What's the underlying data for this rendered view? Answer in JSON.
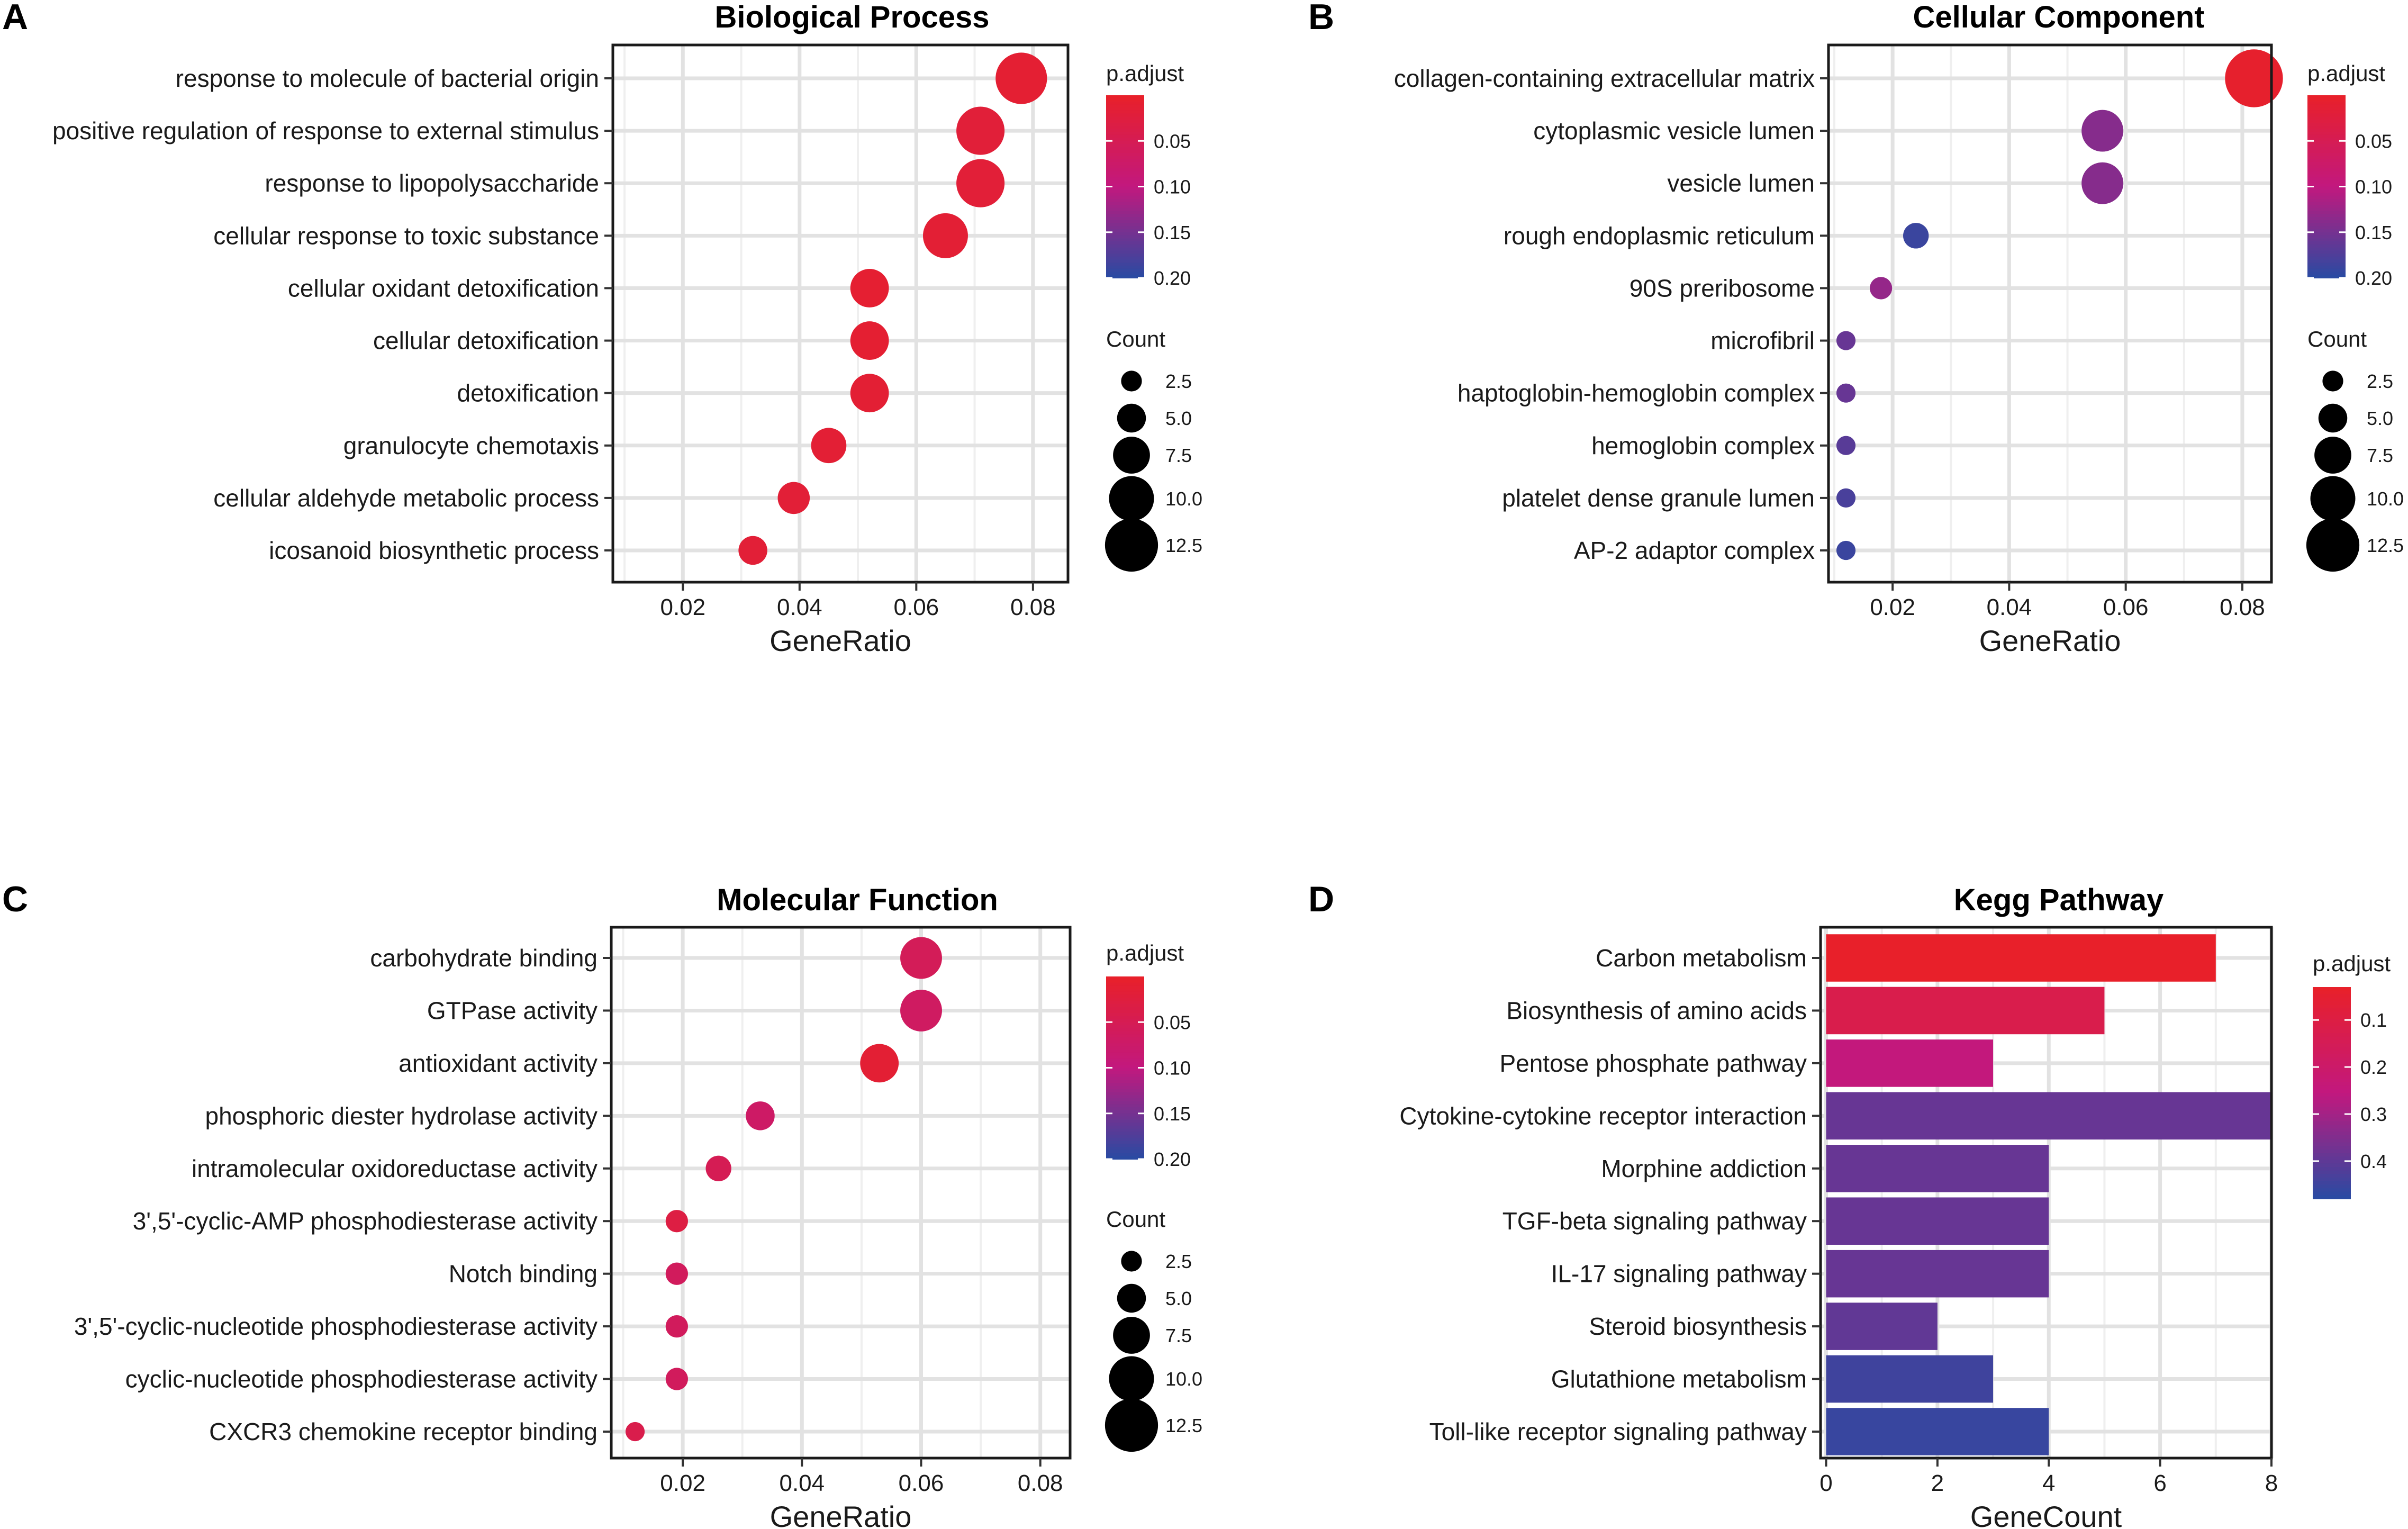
{
  "colors": {
    "high": "#e8202a",
    "mid": "#c2187e",
    "low": "#2b4aa2"
  },
  "chart_data": [
    {
      "panel": "A",
      "type": "scatter",
      "title": "Biological Process",
      "xlabel": "GeneRatio",
      "xlim": [
        0.008,
        0.086
      ],
      "xticks": [
        0.02,
        0.04,
        0.06,
        0.08
      ],
      "xtick_labels": [
        "0.02",
        "0.04",
        "0.06",
        "0.08"
      ],
      "categories": [
        "response to molecule of bacterial origin",
        "positive regulation of response to external stimulus",
        "response to lipopolysaccharide",
        "cellular response to toxic substance",
        "cellular oxidant detoxification",
        "cellular detoxification",
        "detoxification",
        "granulocyte chemotaxis",
        "cellular aldehyde metabolic process",
        "icosanoid biosynthetic process"
      ],
      "gene_ratio": [
        0.078,
        0.071,
        0.071,
        0.065,
        0.052,
        0.052,
        0.052,
        0.045,
        0.039,
        0.032
      ],
      "count": [
        12,
        11,
        11,
        10,
        8,
        8,
        8,
        7,
        6,
        5
      ],
      "p_adjust": [
        0.011,
        0.018,
        0.017,
        0.013,
        0.009,
        0.01,
        0.012,
        0.013,
        0.015,
        0.016
      ],
      "color_legend": {
        "title": "p.adjust",
        "ticks": [
          "0.05",
          "0.10",
          "0.15",
          "0.20"
        ],
        "range": [
          0.0,
          0.2
        ]
      },
      "size_legend": {
        "title": "Count",
        "ticks": [
          "2.5",
          "5.0",
          "7.5",
          "10.0",
          "12.5"
        ]
      }
    },
    {
      "panel": "B",
      "type": "scatter",
      "title": "Cellular Component",
      "xlabel": "GeneRatio",
      "xlim": [
        0.009,
        0.085
      ],
      "xticks": [
        0.02,
        0.04,
        0.06,
        0.08
      ],
      "xtick_labels": [
        "0.02",
        "0.04",
        "0.06",
        "0.08"
      ],
      "categories": [
        "collagen-containing extracellular matrix",
        "cytoplasmic vesicle lumen",
        "vesicle lumen",
        "rough endoplasmic reticulum",
        "90S preribosome",
        "microfibril",
        "haptoglobin-hemoglobin complex",
        "hemoglobin complex",
        "platelet dense granule lumen",
        "AP-2 adaptor complex"
      ],
      "gene_ratio": [
        0.082,
        0.056,
        0.056,
        0.024,
        0.018,
        0.012,
        0.012,
        0.012,
        0.012,
        0.012
      ],
      "count": [
        14,
        9,
        9,
        4,
        3,
        2,
        2,
        2,
        2,
        2
      ],
      "p_adjust": [
        0.004,
        0.14,
        0.14,
        0.19,
        0.13,
        0.16,
        0.16,
        0.17,
        0.18,
        0.19
      ],
      "color_legend": {
        "title": "p.adjust",
        "ticks": [
          "0.05",
          "0.10",
          "0.15",
          "0.20"
        ],
        "range": [
          0.0,
          0.2
        ]
      },
      "size_legend": {
        "title": "Count",
        "ticks": [
          "2.5",
          "5.0",
          "7.5",
          "10.0",
          "12.5"
        ]
      }
    },
    {
      "panel": "C",
      "type": "scatter",
      "title": "Molecular Function",
      "xlabel": "GeneRatio",
      "xlim": [
        0.008,
        0.085
      ],
      "xticks": [
        0.02,
        0.04,
        0.06,
        0.08
      ],
      "xtick_labels": [
        "0.02",
        "0.04",
        "0.06",
        "0.08"
      ],
      "categories": [
        "carbohydrate binding",
        "GTPase activity",
        "antioxidant activity",
        "phosphoric diester hydrolase activity",
        "intramolecular oxidoreductase activity",
        "3',5'-cyclic-AMP phosphodiesterase activity",
        "Notch binding",
        "3',5'-cyclic-nucleotide phosphodiesterase activity",
        "cyclic-nucleotide phosphodiesterase activity",
        "CXCR3 chemokine receptor binding"
      ],
      "gene_ratio": [
        0.06,
        0.06,
        0.053,
        0.033,
        0.026,
        0.019,
        0.019,
        0.019,
        0.019,
        0.012
      ],
      "count": [
        9,
        9,
        8,
        5,
        4,
        3,
        3,
        3,
        3,
        2
      ],
      "p_adjust": [
        0.055,
        0.065,
        0.012,
        0.07,
        0.05,
        0.03,
        0.06,
        0.06,
        0.06,
        0.04
      ],
      "color_legend": {
        "title": "p.adjust",
        "ticks": [
          "0.05",
          "0.10",
          "0.15",
          "0.20"
        ],
        "range": [
          0.0,
          0.2
        ]
      },
      "size_legend": {
        "title": "Count",
        "ticks": [
          "2.5",
          "5.0",
          "7.5",
          "10.0",
          "12.5"
        ]
      }
    },
    {
      "panel": "D",
      "type": "bar",
      "title": "Kegg Pathway",
      "xlabel": "GeneCount",
      "xlim": [
        -0.1,
        8.0
      ],
      "xticks": [
        0,
        2,
        4,
        6,
        8
      ],
      "xtick_labels": [
        "0",
        "2",
        "4",
        "6",
        "8"
      ],
      "categories": [
        "Carbon metabolism",
        "Biosynthesis of amino acids",
        "Pentose phosphate pathway",
        "Cytokine-cytokine receptor interaction",
        "Morphine addiction",
        "TGF-beta signaling pathway",
        "IL-17 signaling pathway",
        "Steroid biosynthesis",
        "Glutathione metabolism",
        "Toll-like receptor signaling pathway"
      ],
      "values": [
        7,
        5,
        3,
        8,
        4,
        4,
        4,
        2,
        3,
        4
      ],
      "p_adjust": [
        0.03,
        0.12,
        0.25,
        0.39,
        0.39,
        0.39,
        0.39,
        0.4,
        0.45,
        0.46
      ],
      "color_legend": {
        "title": "p.adjust",
        "ticks": [
          "0.1",
          "0.2",
          "0.3",
          "0.4"
        ],
        "range": [
          0.03,
          0.48
        ]
      }
    }
  ],
  "panel_letters": [
    "A",
    "B",
    "C",
    "D"
  ]
}
